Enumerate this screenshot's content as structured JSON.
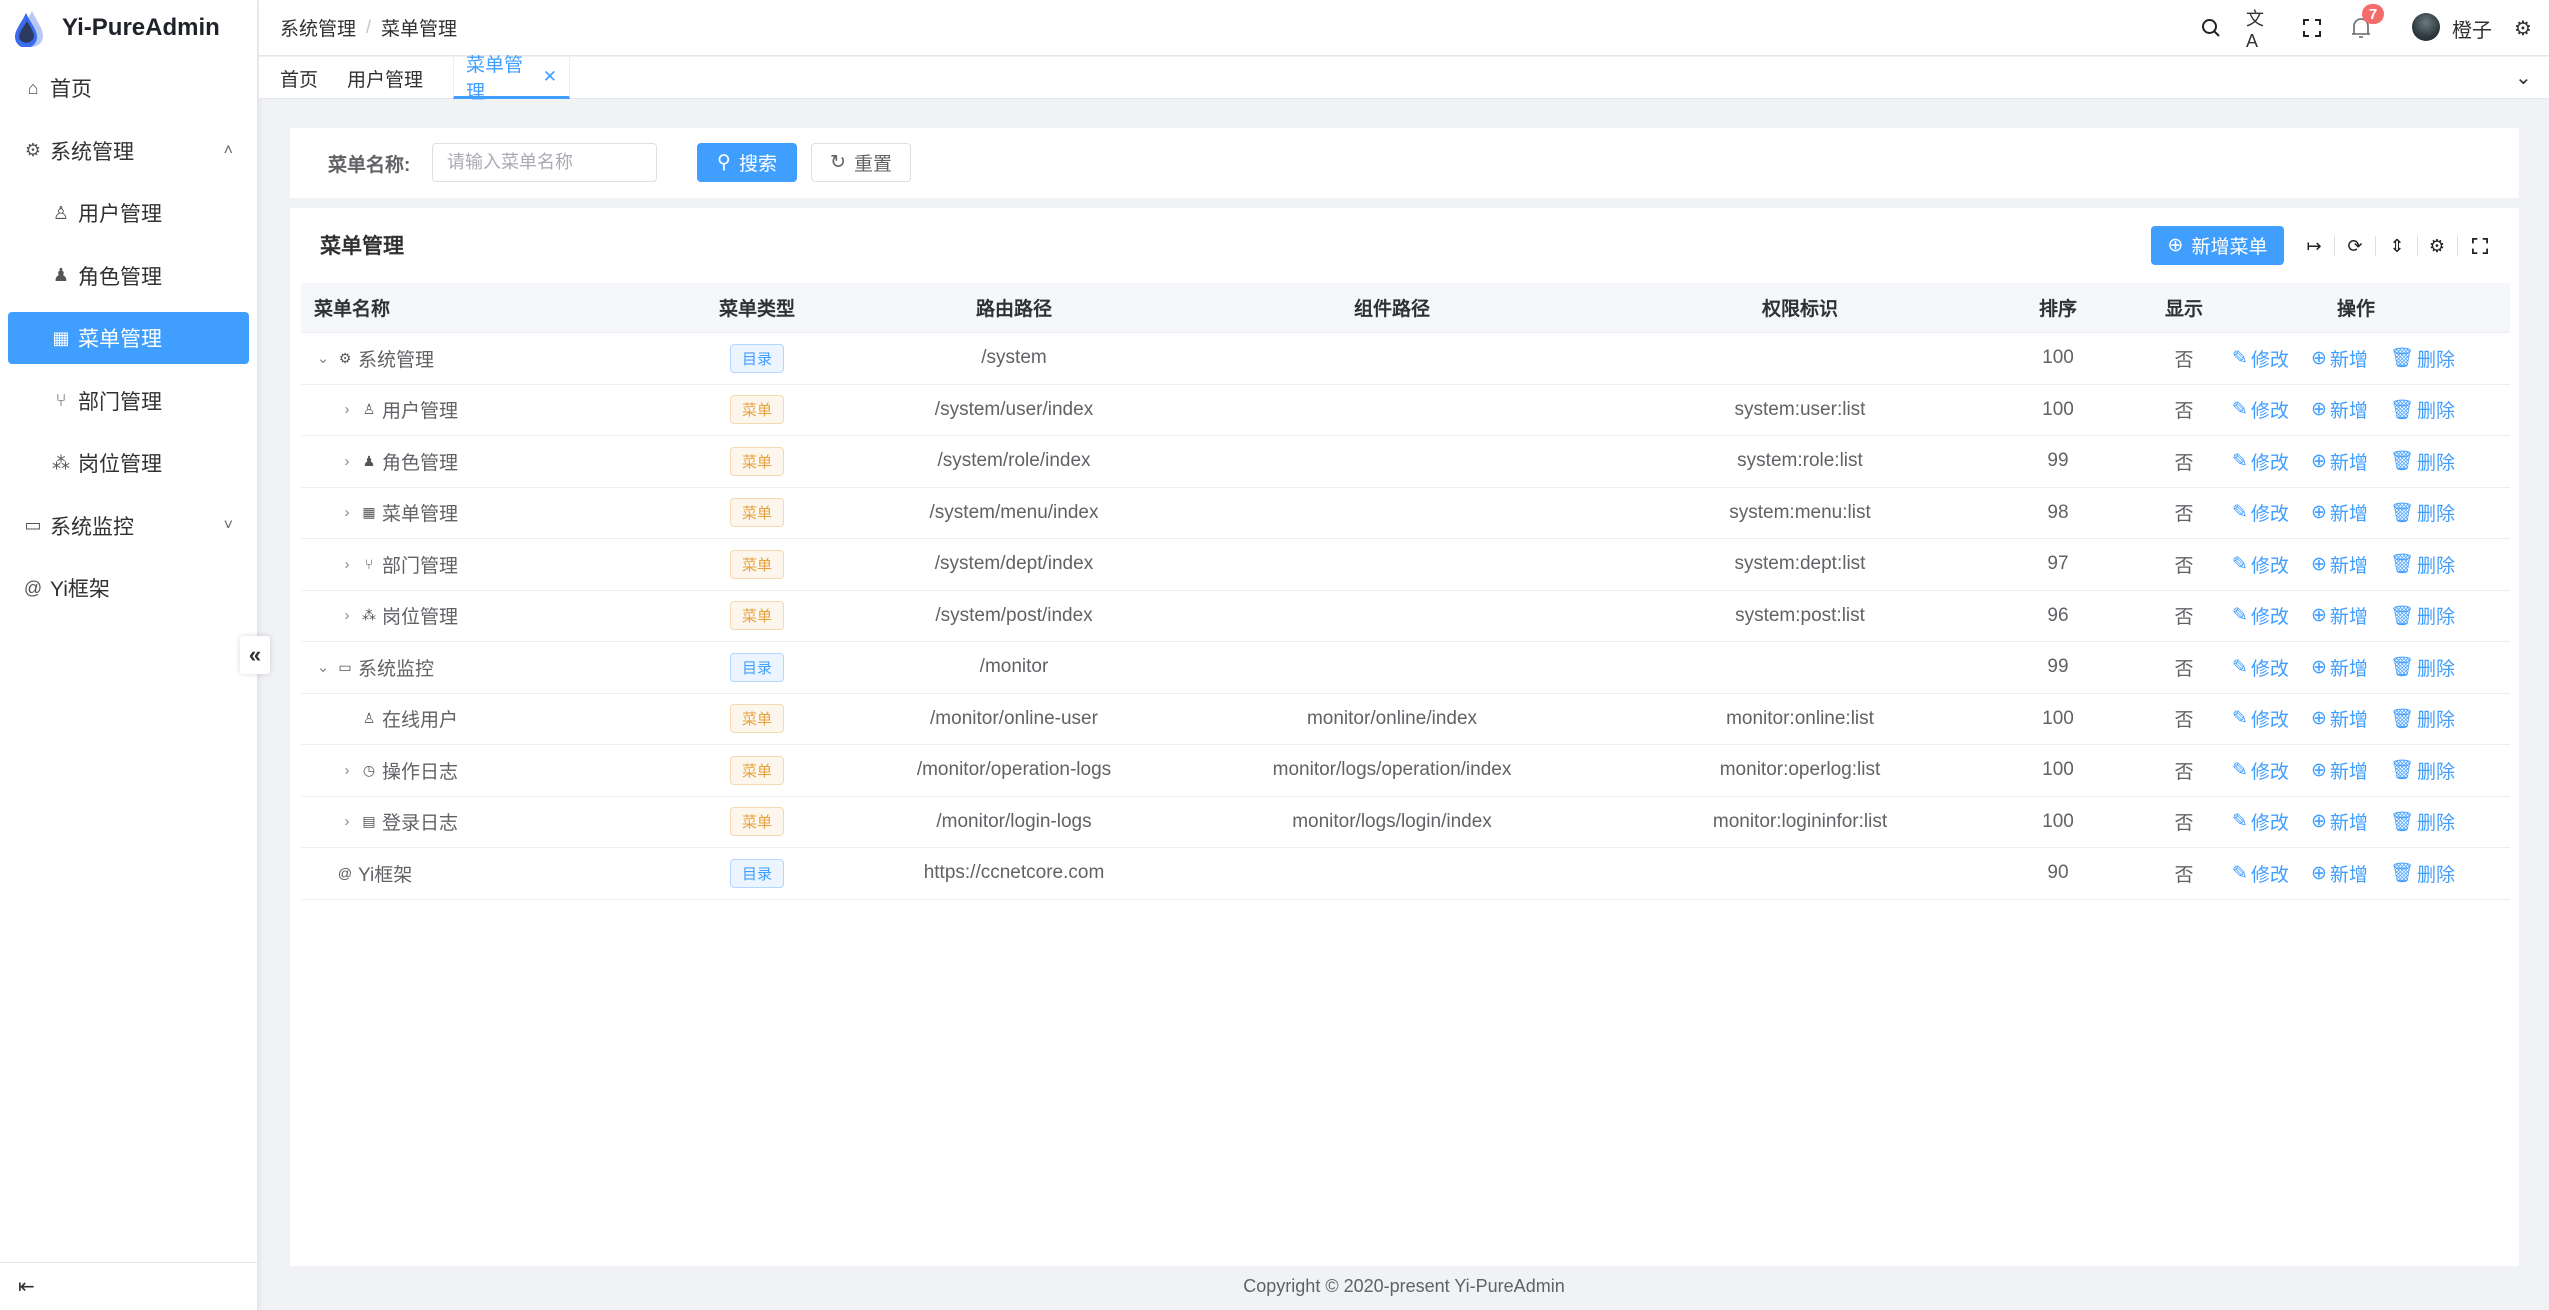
{
  "app": {
    "title": "Yi-PureAdmin",
    "accent": "#409eff"
  },
  "sidebar": {
    "items": [
      {
        "label": "首页",
        "icon": "home-icon",
        "level": 0
      },
      {
        "label": "系统管理",
        "icon": "gear-icon",
        "level": 0,
        "expanded": true
      },
      {
        "label": "用户管理",
        "icon": "user-icon",
        "level": 1
      },
      {
        "label": "角色管理",
        "icon": "role-icon",
        "level": 1
      },
      {
        "label": "菜单管理",
        "icon": "grid-icon",
        "level": 1,
        "active": true
      },
      {
        "label": "部门管理",
        "icon": "branch-icon",
        "level": 1
      },
      {
        "label": "岗位管理",
        "icon": "org-icon",
        "level": 1
      },
      {
        "label": "系统监控",
        "icon": "monitor-icon",
        "level": 0,
        "expanded": false
      },
      {
        "label": "Yi框架",
        "icon": "at-icon",
        "level": 0
      }
    ]
  },
  "header": {
    "breadcrumb": [
      "系统管理",
      "菜单管理"
    ],
    "notification_count": "7",
    "username": "橙子"
  },
  "tabs": [
    {
      "label": "首页"
    },
    {
      "label": "用户管理"
    },
    {
      "label": "菜单管理",
      "active": true
    }
  ],
  "search": {
    "label": "菜单名称:",
    "placeholder": "请输入菜单名称",
    "value": "",
    "search_label": "搜索",
    "reset_label": "重置"
  },
  "table": {
    "title": "菜单管理",
    "add_label": "新增菜单",
    "columns": [
      "菜单名称",
      "菜单类型",
      "路由路径",
      "组件路径",
      "权限标识",
      "排序",
      "显示",
      "操作"
    ],
    "actions": {
      "edit": "修改",
      "add": "新增",
      "delete": "删除"
    },
    "rows": [
      {
        "name": "系统管理",
        "icon": "gear-icon",
        "level": 0,
        "expander": "down",
        "type": "目录",
        "type_kind": "dir",
        "route": "/system",
        "component": "",
        "perm": "",
        "sort": "100",
        "show": "否"
      },
      {
        "name": "用户管理",
        "icon": "user-icon",
        "level": 1,
        "expander": "right",
        "type": "菜单",
        "type_kind": "menu",
        "route": "/system/user/index",
        "component": "",
        "perm": "system:user:list",
        "sort": "100",
        "show": "否"
      },
      {
        "name": "角色管理",
        "icon": "role-icon",
        "level": 1,
        "expander": "right",
        "type": "菜单",
        "type_kind": "menu",
        "route": "/system/role/index",
        "component": "",
        "perm": "system:role:list",
        "sort": "99",
        "show": "否"
      },
      {
        "name": "菜单管理",
        "icon": "grid-icon",
        "level": 1,
        "expander": "right",
        "type": "菜单",
        "type_kind": "menu",
        "route": "/system/menu/index",
        "component": "",
        "perm": "system:menu:list",
        "sort": "98",
        "show": "否"
      },
      {
        "name": "部门管理",
        "icon": "branch-icon",
        "level": 1,
        "expander": "right",
        "type": "菜单",
        "type_kind": "menu",
        "route": "/system/dept/index",
        "component": "",
        "perm": "system:dept:list",
        "sort": "97",
        "show": "否"
      },
      {
        "name": "岗位管理",
        "icon": "org-icon",
        "level": 1,
        "expander": "right",
        "type": "菜单",
        "type_kind": "menu",
        "route": "/system/post/index",
        "component": "",
        "perm": "system:post:list",
        "sort": "96",
        "show": "否"
      },
      {
        "name": "系统监控",
        "icon": "monitor-icon",
        "level": 0,
        "expander": "down",
        "type": "目录",
        "type_kind": "dir",
        "route": "/monitor",
        "component": "",
        "perm": "",
        "sort": "99",
        "show": "否"
      },
      {
        "name": "在线用户",
        "icon": "online-user-icon",
        "level": 1,
        "expander": "none",
        "type": "菜单",
        "type_kind": "menu",
        "route": "/monitor/online-user",
        "component": "monitor/online/index",
        "perm": "monitor:online:list",
        "sort": "100",
        "show": "否"
      },
      {
        "name": "操作日志",
        "icon": "history-icon",
        "level": 1,
        "expander": "right",
        "type": "菜单",
        "type_kind": "menu",
        "route": "/monitor/operation-logs",
        "component": "monitor/logs/operation/index",
        "perm": "monitor:operlog:list",
        "sort": "100",
        "show": "否"
      },
      {
        "name": "登录日志",
        "icon": "window-icon",
        "level": 1,
        "expander": "right",
        "type": "菜单",
        "type_kind": "menu",
        "route": "/monitor/login-logs",
        "component": "monitor/logs/login/index",
        "perm": "monitor:logininfor:list",
        "sort": "100",
        "show": "否"
      },
      {
        "name": "Yi框架",
        "icon": "at-icon",
        "level": 0,
        "expander": "none",
        "type": "目录",
        "type_kind": "dir",
        "route": "https://ccnetcore.com",
        "component": "",
        "perm": "",
        "sort": "90",
        "show": "否"
      }
    ]
  },
  "footer": {
    "copyright": "Copyright © 2020-present Yi-PureAdmin"
  }
}
